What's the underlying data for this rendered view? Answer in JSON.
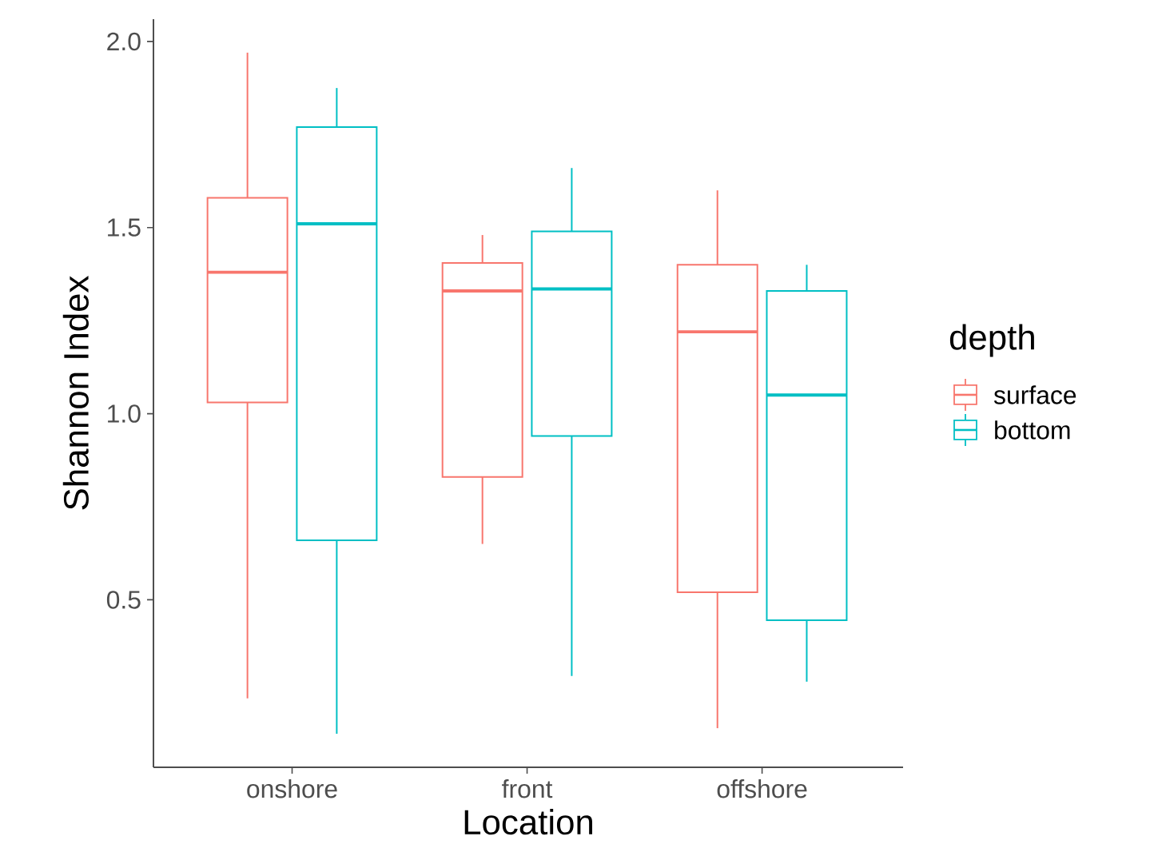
{
  "chart_data": {
    "type": "box",
    "xlabel": "Location",
    "ylabel": "Shannon Index",
    "legend_title": "depth",
    "legend": "right",
    "categories": [
      "onshore",
      "front",
      "offshore"
    ],
    "ylim": [
      0.05,
      2.06
    ],
    "yticks": [
      {
        "value": 0.5,
        "label": "0.5"
      },
      {
        "value": 1.0,
        "label": "1.0"
      },
      {
        "value": 1.5,
        "label": "1.5"
      },
      {
        "value": 2.0,
        "label": "2.0"
      }
    ],
    "series": [
      {
        "name": "surface",
        "color": "#f8766d",
        "boxes": [
          {
            "low": 0.235,
            "q1": 1.03,
            "median": 1.38,
            "q3": 1.58,
            "high": 1.97
          },
          {
            "low": 0.65,
            "q1": 0.83,
            "median": 1.33,
            "q3": 1.405,
            "high": 1.48
          },
          {
            "low": 0.155,
            "q1": 0.52,
            "median": 1.22,
            "q3": 1.4,
            "high": 1.6
          }
        ]
      },
      {
        "name": "bottom",
        "color": "#00bfc4",
        "boxes": [
          {
            "low": 0.14,
            "q1": 0.66,
            "median": 1.51,
            "q3": 1.77,
            "high": 1.875
          },
          {
            "low": 0.295,
            "q1": 0.94,
            "median": 1.335,
            "q3": 1.49,
            "high": 1.66
          },
          {
            "low": 0.28,
            "q1": 0.445,
            "median": 1.05,
            "q3": 1.33,
            "high": 1.4
          }
        ]
      }
    ]
  }
}
